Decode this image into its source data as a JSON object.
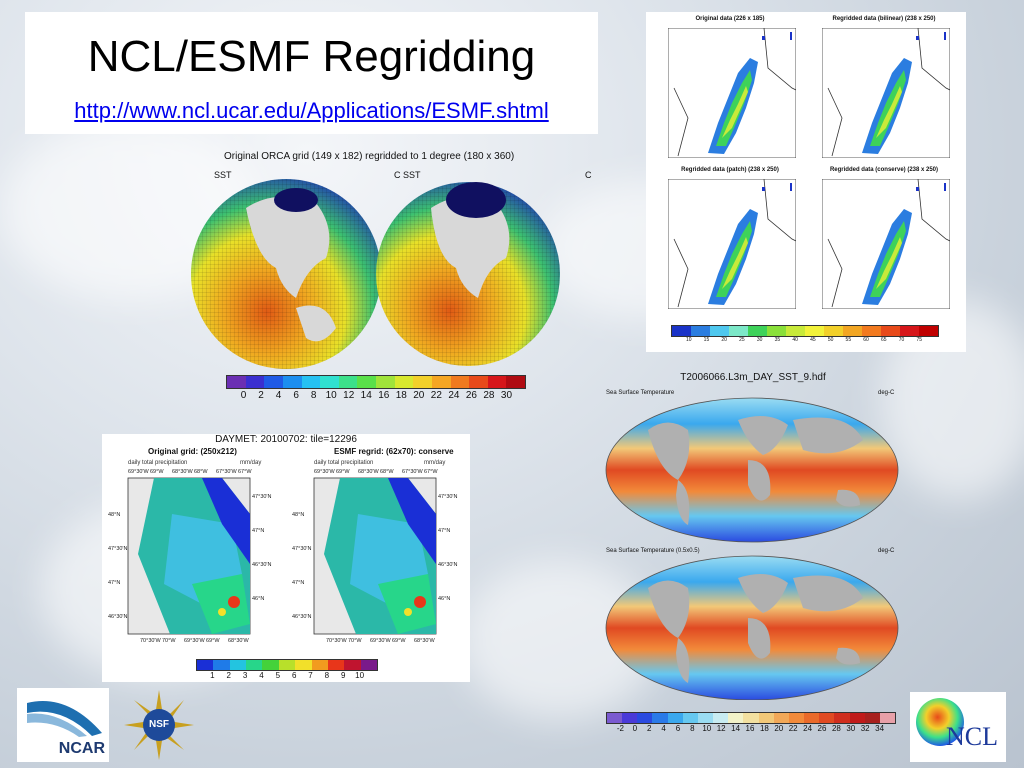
{
  "slide": {
    "title": "NCL/ESMF Regridding",
    "url": "http://www.ncl.ucar.edu/Applications/ESMF.shtml"
  },
  "orca": {
    "title": "Original ORCA grid (149 x 182) regridded to 1 degree (180 x 360)",
    "left_label": "SST",
    "right_label": "C SST",
    "right_unit": "C",
    "colorbar_labels": [
      "0",
      "2",
      "4",
      "6",
      "8",
      "10",
      "12",
      "14",
      "16",
      "18",
      "20",
      "22",
      "24",
      "26",
      "28",
      "30"
    ]
  },
  "daymet": {
    "title": "DAYMET: 20100702: tile=12296",
    "left_title": "Original grid: (250x212)",
    "right_title": "ESMF regrid: (62x70): conserve",
    "var_label": "daily total precipitation",
    "unit_label": "mm/day",
    "top_ticks": [
      "69°30'W",
      "69°W",
      "68°30'W",
      "68°W",
      "67°30'W",
      "67°W"
    ],
    "bottom_ticks": [
      "70°30'W",
      "70°W",
      "69°30'W",
      "69°W",
      "68°30'W"
    ],
    "left_ticks": [
      "48°N",
      "47°30'N",
      "47°N",
      "46°30'N"
    ],
    "right_ticks": [
      "47°30'N",
      "47°N",
      "46°30'N",
      "46°N"
    ],
    "colorbar_labels": [
      "1",
      "2",
      "3",
      "4",
      "5",
      "6",
      "7",
      "8",
      "9",
      "10"
    ]
  },
  "regrid4": {
    "panels": [
      {
        "title": "Original data (226 x 185)"
      },
      {
        "title": "Regridded data (bilinear) (238 x 250)"
      },
      {
        "title": "Regridded data (patch) (238 x 250)"
      },
      {
        "title": "Regridded data (conserve) (238 x 250)"
      }
    ],
    "colorbar_labels": [
      "10",
      "15",
      "20",
      "25",
      "30",
      "35",
      "40",
      "45",
      "50",
      "55",
      "60",
      "65",
      "70",
      "75"
    ]
  },
  "sst": {
    "file_title": "T2006066.L3m_DAY_SST_9.hdf",
    "map1_label": "Sea Surface Temperature",
    "map1_unit": "deg-C",
    "map2_label": "Sea Surface Temperature (0.5x0.5)",
    "map2_unit": "deg-C",
    "colorbar_labels": [
      "-2",
      "0",
      "2",
      "4",
      "6",
      "8",
      "10",
      "12",
      "14",
      "16",
      "18",
      "20",
      "22",
      "24",
      "26",
      "28",
      "30",
      "32",
      "34"
    ]
  },
  "logos": {
    "ncar": "NCAR",
    "nsf": "NSF",
    "ncl": "NCL"
  },
  "colors": {
    "sst_ramp": [
      "#6b2fb3",
      "#3a2fd0",
      "#1f5ae6",
      "#1c8ef0",
      "#26c1f2",
      "#30e0d0",
      "#3ce08a",
      "#5ae04a",
      "#a0e33a",
      "#d8e82e",
      "#f2d02a",
      "#f5a623",
      "#f07a1f",
      "#e84a1a",
      "#d6161a",
      "#b00b12"
    ],
    "precip_ramp": [
      "#1a2fd6",
      "#1f7be8",
      "#23c4e0",
      "#27d68a",
      "#44d23a",
      "#b8e02a",
      "#f2e02a",
      "#f29b1f",
      "#e8361a",
      "#c0142f",
      "#7a1a8a"
    ],
    "mode_ramp": [
      "#1a33c8",
      "#2b7de0",
      "#4fc8ef",
      "#7ce8c8",
      "#3ed25a",
      "#8ae03a",
      "#c8ea3a",
      "#f2f23a",
      "#f2d02a",
      "#f2a623",
      "#f27a1f",
      "#e84a1a",
      "#d6161a",
      "#c00000"
    ],
    "sst2_ramp": [
      "#7a5ad0",
      "#4a3ad8",
      "#2a4ae0",
      "#2a7ae8",
      "#3aa8ee",
      "#66c8f0",
      "#9adcf2",
      "#c8ecf2",
      "#f2f2c8",
      "#f2e0a0",
      "#f2c878",
      "#f2a858",
      "#f28a3a",
      "#ea6a2a",
      "#e04a22",
      "#d02e1e",
      "#c01a1a",
      "#a8201e",
      "#e8a0a8"
    ]
  }
}
